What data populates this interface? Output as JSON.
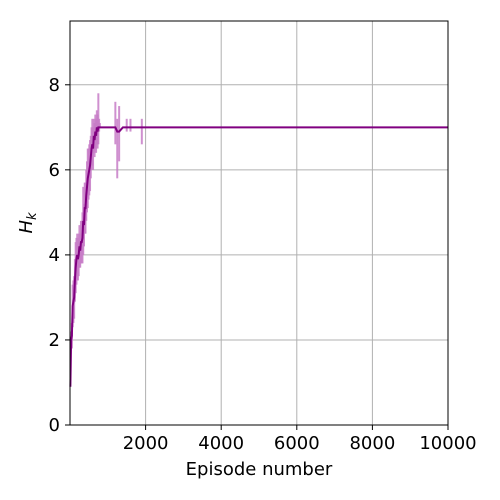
{
  "chart_data": {
    "type": "line",
    "title": "",
    "xlabel": "Episode number",
    "ylabel": "H_k",
    "xlim": [
      0,
      10000
    ],
    "ylim": [
      0,
      9.5
    ],
    "xticks": [
      2000,
      4000,
      6000,
      8000,
      10000
    ],
    "xtick_labels": [
      "2000",
      "4000",
      "6000",
      "8000",
      "10000"
    ],
    "yticks": [
      0,
      2,
      4,
      6,
      8
    ],
    "ytick_labels": [
      "0",
      "2",
      "4",
      "6",
      "8"
    ],
    "grid": true,
    "legend": "none",
    "colors": {
      "line": "#800080",
      "band": "#c77dc7"
    },
    "series": [
      {
        "x": [
          10,
          30,
          50,
          70,
          90,
          110,
          130,
          150,
          170,
          190,
          210,
          230,
          250,
          270,
          290,
          310,
          330,
          350,
          370,
          390,
          410,
          430,
          450,
          470,
          490,
          510,
          530,
          550,
          570,
          590,
          610,
          630,
          650,
          670,
          690,
          710,
          730,
          750,
          770,
          790,
          810,
          830,
          850,
          870,
          890,
          900,
          1000,
          1100,
          1200,
          1250,
          1300,
          1400,
          1500,
          1600,
          1700,
          1800,
          1900,
          2000,
          3000,
          4000,
          5000,
          6000,
          7000,
          8000,
          9000,
          10000
        ],
        "y": [
          0.9,
          2.0,
          2.1,
          2.8,
          2.9,
          3.0,
          3.4,
          3.7,
          3.9,
          4.0,
          3.9,
          4.0,
          4.2,
          4.1,
          4.3,
          4.3,
          4.4,
          4.8,
          4.7,
          5.1,
          5.1,
          5.4,
          5.6,
          5.8,
          5.9,
          6.0,
          6.1,
          6.3,
          6.5,
          6.6,
          6.5,
          6.8,
          6.7,
          6.9,
          6.8,
          7.0,
          6.9,
          7.0,
          7.0,
          7.0,
          7.0,
          7.0,
          7.0,
          7.0,
          7.0,
          7.0,
          7.0,
          7.0,
          7.0,
          6.9,
          6.9,
          7.0,
          7.0,
          7.0,
          7.0,
          7.0,
          7.0,
          7.0,
          7.0,
          7.0,
          7.0,
          7.0,
          7.0,
          7.0,
          7.0,
          7.0
        ],
        "lower": [
          0.9,
          1.8,
          1.8,
          2.3,
          2.4,
          2.5,
          2.9,
          3.1,
          3.3,
          3.4,
          3.4,
          3.5,
          3.7,
          3.7,
          3.8,
          3.8,
          3.8,
          4.0,
          4.2,
          4.5,
          4.5,
          4.8,
          5.0,
          5.1,
          5.3,
          5.4,
          5.5,
          5.8,
          6.0,
          6.1,
          6.0,
          6.4,
          6.3,
          6.5,
          6.4,
          6.6,
          6.5,
          6.6,
          6.9,
          7.0,
          7.0,
          7.0,
          7.0,
          7.0,
          7.0,
          7.0,
          7.0,
          7.0,
          6.6,
          5.8,
          6.2,
          7.0,
          6.9,
          6.9,
          7.0,
          7.0,
          6.6,
          7.0,
          7.0,
          7.0,
          7.0,
          7.0,
          7.0,
          7.0,
          7.0,
          7.0
        ],
        "upper": [
          0.9,
          2.2,
          2.4,
          3.3,
          3.4,
          3.5,
          3.9,
          4.3,
          4.4,
          4.5,
          4.4,
          4.5,
          4.7,
          4.5,
          4.8,
          4.8,
          5.0,
          5.6,
          5.2,
          5.7,
          5.7,
          6.0,
          6.2,
          6.5,
          6.5,
          6.6,
          6.7,
          6.8,
          7.0,
          7.2,
          7.0,
          7.2,
          7.1,
          7.3,
          7.2,
          7.4,
          7.3,
          7.8,
          7.2,
          7.1,
          7.0,
          7.0,
          7.0,
          7.0,
          7.0,
          7.0,
          7.0,
          7.0,
          7.6,
          7.2,
          7.5,
          7.0,
          7.2,
          7.2,
          7.0,
          7.0,
          7.2,
          7.0,
          7.0,
          7.0,
          7.0,
          7.0,
          7.0,
          7.0,
          7.0,
          7.0
        ]
      }
    ]
  }
}
